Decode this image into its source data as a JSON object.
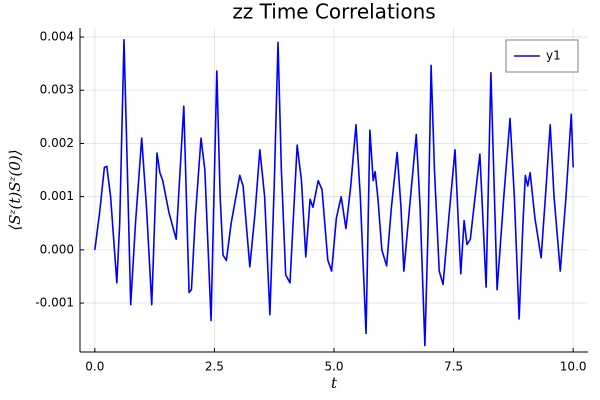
{
  "chart_data": {
    "type": "line",
    "title": "zz Time Correlations",
    "x_label": "t",
    "y_label": "⟨Sᶻ(t)Sᶻ(0)⟩",
    "xlim": [
      -0.31,
      10.31
    ],
    "ylim": [
      -0.00192,
      0.00417
    ],
    "xticks": [
      {
        "value": 0,
        "label": "0.0"
      },
      2.5,
      {
        "value": 5,
        "label": "5.0"
      },
      7.5,
      {
        "value": 10,
        "label": "10.0"
      }
    ],
    "yticks": [
      -0.001,
      {
        "value": 0,
        "label": "0.000"
      },
      0.001,
      0.002,
      0.003,
      0.004
    ],
    "grid": true,
    "legend": "top-right",
    "x": [
      0,
      0.1,
      0.2,
      0.25,
      0.33,
      0.46,
      0.52,
      0.61,
      0.68,
      0.75,
      0.85,
      0.98,
      1.08,
      1.19,
      1.3,
      1.36,
      1.42,
      1.55,
      1.7,
      1.86,
      1.97,
      2.02,
      2.1,
      2.22,
      2.3,
      2.43,
      2.55,
      2.62,
      2.68,
      2.75,
      2.85,
      3.03,
      3.1,
      3.24,
      3.35,
      3.45,
      3.55,
      3.66,
      3.75,
      3.83,
      3.9,
      3.99,
      4.08,
      4.23,
      4.32,
      4.41,
      4.5,
      4.56,
      4.67,
      4.75,
      4.87,
      4.95,
      5.05,
      5.15,
      5.25,
      5.35,
      5.46,
      5.55,
      5.67,
      5.75,
      5.82,
      5.86,
      5.92,
      6.0,
      6.1,
      6.2,
      6.32,
      6.4,
      6.46,
      6.58,
      6.72,
      6.8,
      6.9,
      6.97,
      7.03,
      7.1,
      7.2,
      7.28,
      7.4,
      7.53,
      7.6,
      7.65,
      7.72,
      7.78,
      7.85,
      7.95,
      8.05,
      8.18,
      8.28,
      8.41,
      8.55,
      8.68,
      8.77,
      8.87,
      8.95,
      9.0,
      9.05,
      9.1,
      9.2,
      9.33,
      9.42,
      9.52,
      9.6,
      9.73,
      9.85,
      9.96,
      10.0
    ],
    "series": [
      {
        "name": "y1",
        "color": "#0000ff",
        "values": [
          0,
          0.0007,
          0.00155,
          0.00157,
          0.001,
          -0.00062,
          0.0005,
          0.00395,
          0.0015,
          -0.00103,
          0.0005,
          0.0021,
          0.0008,
          -0.00103,
          0.00182,
          0.00145,
          0.0013,
          0.0007,
          0.0002,
          0.0027,
          -0.0008,
          -0.00075,
          0.0006,
          0.0021,
          0.0015,
          -0.00133,
          0.00336,
          0.001,
          -0.0001,
          -0.0002,
          0.0005,
          0.0014,
          0.0012,
          -0.00032,
          0.0007,
          0.00188,
          0.001,
          -0.00122,
          0.0012,
          0.0039,
          0.0015,
          -0.00047,
          -0.00062,
          0.00197,
          0.0013,
          -0.00013,
          0.00095,
          0.0008,
          0.0013,
          0.00113,
          -0.00019,
          -0.0004,
          0.0006,
          0.001,
          0.0004,
          0.0012,
          0.00235,
          0.001,
          -0.00157,
          0.00225,
          0.0013,
          0.00147,
          0.00095,
          0,
          -0.0003,
          0.0008,
          0.00183,
          0.0008,
          -0.0004,
          0.0008,
          0.00217,
          0.0008,
          -0.0018,
          0.0005,
          0.00347,
          0.0015,
          -0.0004,
          -0.00065,
          0.0006,
          0.00188,
          0.0005,
          -0.00045,
          0.00055,
          0.0001,
          0.0002,
          0.001,
          0.0018,
          -0.0007,
          0.00333,
          -0.00075,
          0.001,
          0.00247,
          0.001,
          -0.0013,
          0.0005,
          0.0014,
          0.0012,
          0.00145,
          0.0006,
          -0.00015,
          0.001,
          0.00235,
          0.001,
          -0.0004,
          0.001,
          0.00255,
          0.00155
        ]
      }
    ]
  }
}
